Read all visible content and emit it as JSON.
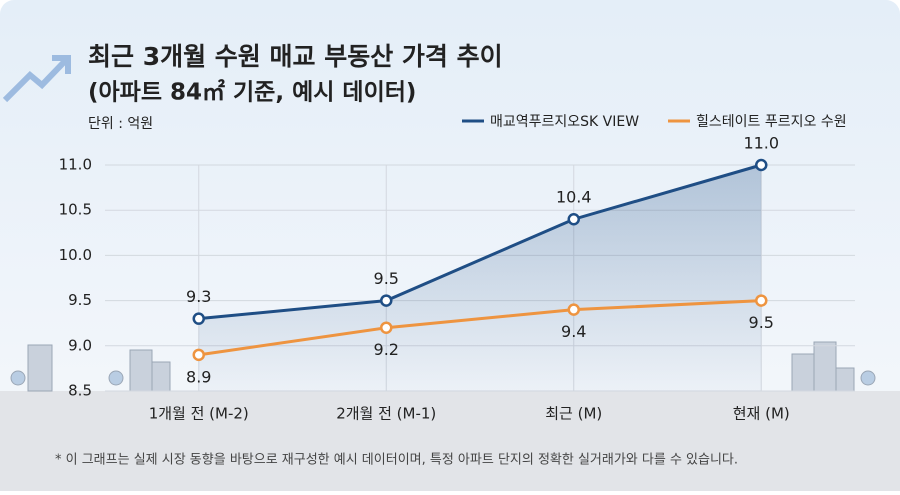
{
  "chart_data": {
    "type": "line",
    "title": "최근 3개월 수원 매교 부동산 가격 추이",
    "subtitle": "(아파트 84㎡ 기준, 예시 데이터)",
    "unit_label": "단위 : 억원",
    "footnote": "* 이 그래프는 실제 시장 동향을 바탕으로 재구성한 예시 데이터이며, 특정 아파트 단지의 정확한 실거래가와 다를 수 있습니다.",
    "categories": [
      "1개월 전 (M-2)",
      "2개월 전 (M-1)",
      "최근 (M)",
      "현재 (M)"
    ],
    "series": [
      {
        "name": "매교역푸르지오SK VIEW",
        "color": "#1f4e85",
        "values": [
          9.3,
          9.5,
          10.4,
          11.0
        ],
        "value_labels": [
          "9.3",
          "9.5",
          "10.4",
          "11.0"
        ],
        "label_position": "above",
        "area": true
      },
      {
        "name": "힐스테이트 푸르지오 수원",
        "color": "#ee9440",
        "values": [
          8.9,
          9.2,
          9.4,
          9.5
        ],
        "label_position": "below",
        "area": false
      }
    ],
    "ylim": [
      8.5,
      11.0
    ],
    "yticks": [
      8.5,
      {
        "value": 9.0,
        "label": "9.0"
      },
      9.5,
      {
        "value": 10.0,
        "label": "10.0"
      },
      10.5,
      {
        "value": 11.0,
        "label": "11.0"
      }
    ],
    "grid": true
  }
}
